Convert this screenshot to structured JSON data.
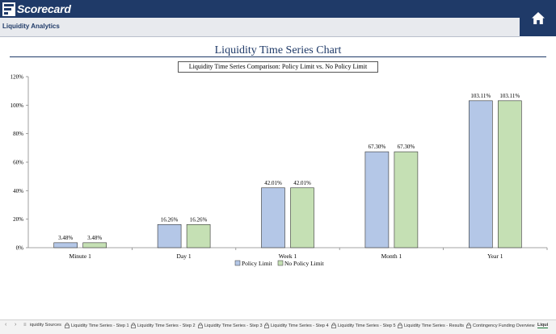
{
  "app": {
    "name": "Scorecard"
  },
  "nav": {
    "title": "Liquidity Analytics"
  },
  "page": {
    "title": "Liquidity Time Series Chart",
    "subtitle": "Liquidity Time Series Comparison: Policy Limit vs. No Policy Limit"
  },
  "chart_data": {
    "type": "bar",
    "categories": [
      "Minute 1",
      "Day 1",
      "Week 1",
      "Month 1",
      "Year 1"
    ],
    "series": [
      {
        "name": "Policy Limit",
        "values": [
          3.48,
          16.26,
          42.01,
          67.3,
          103.11
        ],
        "color": "#b4c7e7"
      },
      {
        "name": "No Policy Limit",
        "values": [
          3.48,
          16.26,
          42.01,
          67.3,
          103.11
        ],
        "color": "#c5e0b4"
      }
    ],
    "data_labels": [
      [
        "3.48%",
        "16.26%",
        "42.01%",
        "67.30%",
        "103.11%"
      ],
      [
        "3.48%",
        "16.26%",
        "42.01%",
        "67.30%",
        "103.11%"
      ]
    ],
    "yticks": [
      "0%",
      "20%",
      "40%",
      "60%",
      "80%",
      "100%",
      "120%"
    ],
    "ylim": [
      0,
      120
    ],
    "grid": false,
    "legend": "bottom"
  },
  "tabs": {
    "items": [
      "iquidity Sources",
      "Liquidity Time Series - Step 1",
      "Liquidity Time Series - Step 2",
      "Liquidity Time Series - Step 3",
      "Liquidity Time Series - Step 4",
      "Liquidity Time Series - Step 5",
      "Liquidity Time Series - Results",
      "Contingency Funding Overview",
      "Liqui"
    ]
  },
  "icons": {
    "home": "home-icon",
    "lock": "lock-icon",
    "logo": "scorecard-logo-icon"
  }
}
